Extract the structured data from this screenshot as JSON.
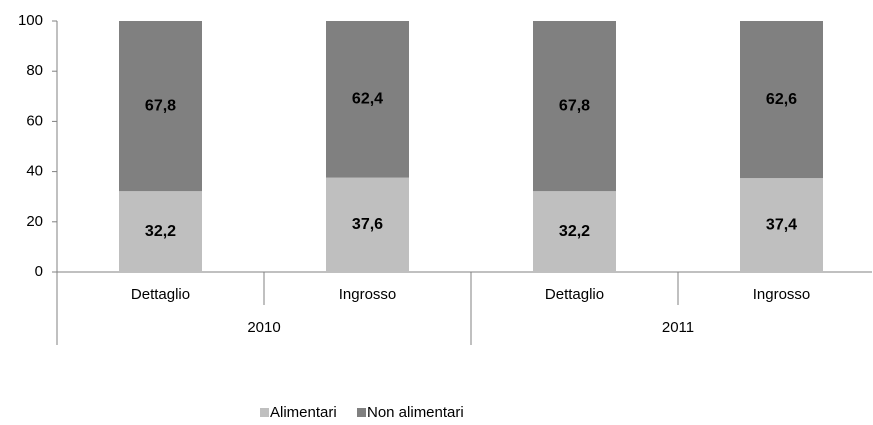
{
  "chart_data": {
    "type": "stacked_bar",
    "categories": [
      "Dettaglio",
      "Ingrosso",
      "Dettaglio",
      "Ingrosso"
    ],
    "groups": [
      "2010",
      "2011"
    ],
    "series": [
      {
        "name": "Alimentari",
        "color": "#bfbfbf",
        "values": [
          32.2,
          37.6,
          32.2,
          37.4
        ],
        "value_labels": [
          "32,2",
          "37,6",
          "32,2",
          "37,4"
        ]
      },
      {
        "name": "Non alimentari",
        "color": "#808080",
        "values": [
          67.8,
          62.4,
          67.8,
          62.6
        ],
        "value_labels": [
          "67,8",
          "62,4",
          "67,8",
          "62,6"
        ]
      }
    ],
    "ylim": [
      0,
      100
    ],
    "yticks": [
      0,
      20,
      40,
      60,
      80,
      100
    ],
    "legend": "bottom"
  }
}
